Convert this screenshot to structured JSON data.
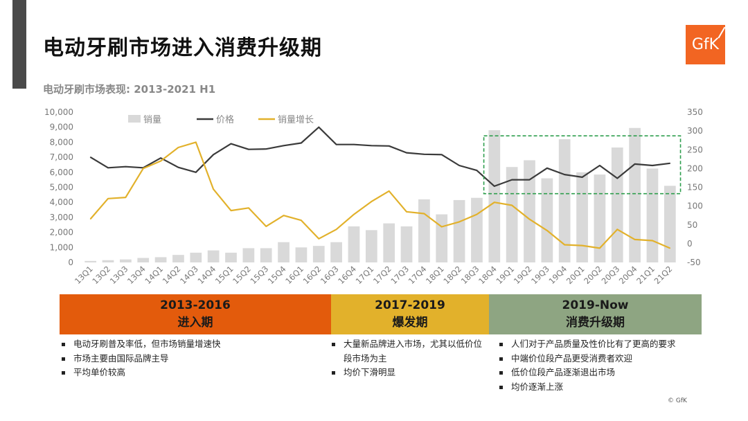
{
  "title": "电动牙刷市场进入消费升级期",
  "logo_text": "GfK",
  "subtitle": "电动牙刷市场表现: 2013-2021 H1",
  "colors": {
    "bar": "#d9d9d9",
    "price": "#3a3a3a",
    "growth": "#e2b12b",
    "highlight": "#2e9e4d"
  },
  "chart_data": {
    "type": "bar+line",
    "categories": [
      "13Q1",
      "13Q2",
      "13Q3",
      "13Q4",
      "14Q1",
      "14Q2",
      "14Q3",
      "14Q4",
      "15Q1",
      "15Q2",
      "15Q3",
      "15Q4",
      "16Q1",
      "16Q2",
      "16Q3",
      "16Q4",
      "17Q1",
      "17Q2",
      "17Q3",
      "17Q4",
      "18Q1",
      "18Q2",
      "18Q3",
      "18Q4",
      "19Q1",
      "19Q2",
      "19Q3",
      "19Q4",
      "20Q1",
      "20Q2",
      "20Q3",
      "20Q4",
      "21Q1",
      "21Q2"
    ],
    "series": [
      {
        "name": "销量",
        "type": "bar",
        "axis": "left",
        "values": [
          100,
          150,
          200,
          300,
          350,
          500,
          650,
          800,
          650,
          950,
          950,
          1350,
          1000,
          1100,
          1350,
          2400,
          2150,
          2600,
          2400,
          4200,
          3200,
          4150,
          4300,
          8800,
          6350,
          6800,
          5600,
          8200,
          6000,
          5850,
          7650,
          8950,
          6250,
          5100
        ]
      },
      {
        "name": "价格",
        "type": "line",
        "axis": "right",
        "values": [
          230,
          202,
          205,
          202,
          228,
          203,
          190,
          237,
          266,
          251,
          252,
          261,
          268,
          310,
          264,
          264,
          261,
          260,
          242,
          238,
          237,
          208,
          195,
          153,
          170,
          170,
          201,
          184,
          177,
          208,
          174,
          212,
          208,
          214
        ]
      },
      {
        "name": "销量增长",
        "type": "line",
        "axis": "right",
        "values": [
          66,
          120,
          123,
          200,
          220,
          256,
          270,
          145,
          88,
          95,
          46,
          75,
          62,
          13,
          38,
          78,
          112,
          140,
          85,
          80,
          45,
          58,
          78,
          110,
          102,
          65,
          35,
          -3,
          -5,
          -12,
          38,
          11,
          8,
          -12
        ]
      }
    ],
    "left_axis": {
      "ylim": [
        0,
        10000
      ],
      "ticks": [
        "0",
        "1,000",
        "2,000",
        "3,000",
        "4,000",
        "5,000",
        "6,000",
        "7,000",
        "8,000",
        "9,000",
        "10,000"
      ]
    },
    "right_axis": {
      "ylim": [
        -50,
        350
      ],
      "ticks": [
        "-50",
        "0",
        "50",
        "100",
        "150",
        "200",
        "250",
        "300",
        "350"
      ]
    },
    "legend": {
      "placement": "top"
    },
    "grid": false,
    "annotation": {
      "type": "dashed-box",
      "from_category": "18Q4",
      "to_category": "21Q2",
      "right_range": [
        133,
        287
      ]
    }
  },
  "phases": [
    {
      "years": "2013-2016",
      "name": "进入期",
      "notes": [
        "电动牙刷普及率低，但市场销量增速快",
        "市场主要由国际品牌主导",
        "平均单价较高"
      ]
    },
    {
      "years": "2017-2019",
      "name": "爆发期",
      "notes": [
        "大量新品牌进入市场，尤其以低价位段市场为主",
        "均价下滑明显"
      ]
    },
    {
      "years": "2019-Now",
      "name": "消费升级期",
      "notes": [
        "人们对于产品质量及性价比有了更高的要求",
        "中端价位段产品更受消费者欢迎",
        "低价位段产品逐渐退出市场",
        "均价逐渐上涨"
      ]
    }
  ],
  "copyright": "© GfK"
}
